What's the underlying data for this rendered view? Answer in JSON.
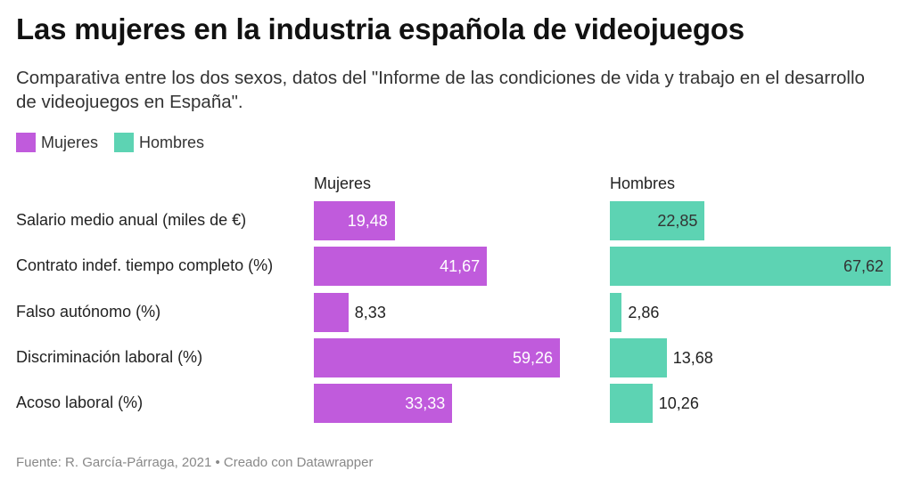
{
  "title": "Las mujeres en la industria española de videojuegos",
  "subtitle": "Comparativa entre los dos sexos, datos del \"Informe de las condiciones de vida y trabajo en el desarrollo de videojuegos en España\".",
  "legend": [
    {
      "label": "Mujeres",
      "color": "#c05bdc"
    },
    {
      "label": "Hombres",
      "color": "#5dd3b3"
    }
  ],
  "footer": "Fuente: R. García-Párraga, 2021 • Creado con Datawrapper",
  "chart_data": {
    "type": "bar",
    "orientation": "horizontal",
    "layout": "split-bars",
    "categories": [
      "Salario medio anual (miles de €)",
      "Contrato indef. tiempo completo (%)",
      "Falso autónomo (%)",
      "Discriminación laboral (%)",
      "Acoso laboral (%)"
    ],
    "series": [
      {
        "name": "Mujeres",
        "color": "#c05bdc",
        "values": [
          19.48,
          41.67,
          8.33,
          59.26,
          33.33
        ],
        "labels": [
          "19,48",
          "41,67",
          "8,33",
          "59,26",
          "33,33"
        ]
      },
      {
        "name": "Hombres",
        "color": "#5dd3b3",
        "values": [
          22.85,
          67.62,
          2.86,
          13.68,
          10.26
        ],
        "labels": [
          "22,85",
          "67,62",
          "2,86",
          "13,68",
          "10,26"
        ]
      }
    ],
    "xlim": [
      0,
      67.62
    ],
    "grid": false,
    "legend_position": "top-left"
  }
}
